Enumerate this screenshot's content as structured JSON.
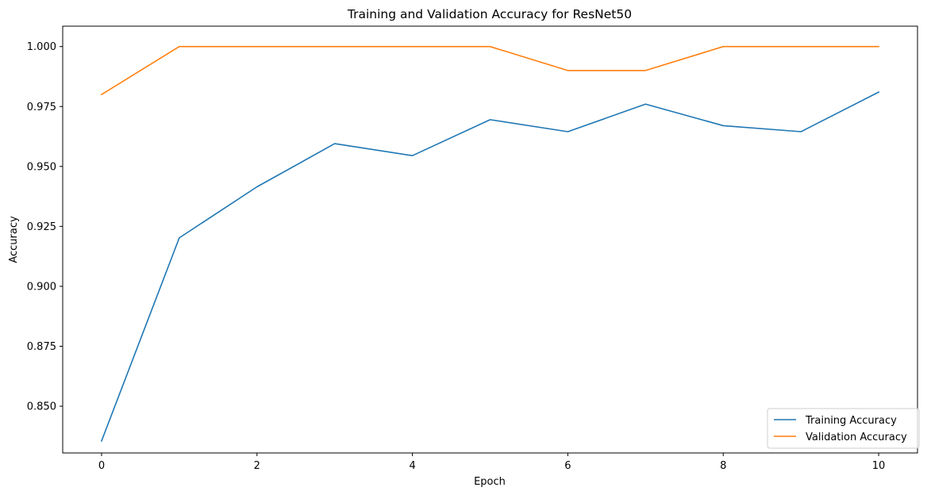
{
  "chart_data": {
    "type": "line",
    "title": "Training and Validation Accuracy for ResNet50",
    "xlabel": "Epoch",
    "ylabel": "Accuracy",
    "x": [
      0,
      1,
      2,
      3,
      4,
      5,
      6,
      7,
      8,
      9,
      10
    ],
    "xticks": [
      "0",
      "2",
      "4",
      "6",
      "8",
      "10"
    ],
    "yticks": [
      "0.850",
      "0.875",
      "0.900",
      "0.925",
      "0.950",
      "0.975",
      "1.000"
    ],
    "xlim": [
      -0.5,
      10.5
    ],
    "ylim": [
      0.8305,
      1.0085
    ],
    "grid": false,
    "legend_position": "lower-right",
    "series": [
      {
        "name": "Training Accuracy",
        "color": "#1f77b4",
        "values": [
          0.8355,
          0.9202,
          0.9415,
          0.9595,
          0.9545,
          0.9695,
          0.9645,
          0.976,
          0.967,
          0.9645,
          0.981
        ]
      },
      {
        "name": "Validation Accuracy",
        "color": "#ff7f0e",
        "values": [
          0.98,
          1.0,
          1.0,
          1.0,
          1.0,
          1.0,
          0.99,
          0.99,
          1.0,
          1.0,
          1.0
        ]
      }
    ]
  }
}
